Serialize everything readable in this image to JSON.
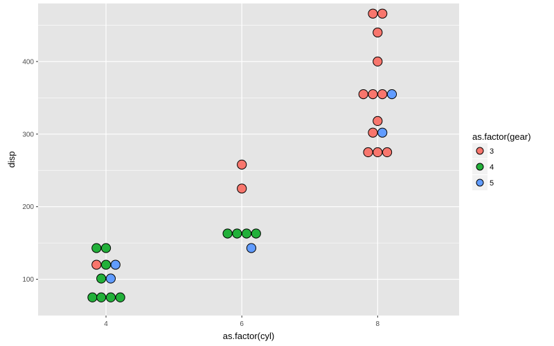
{
  "chart_data": {
    "type": "scatter",
    "subtype": "dotplot",
    "xlabel": "as.factor(cyl)",
    "ylabel": "disp",
    "xlim": [
      3,
      9.2
    ],
    "ylim": [
      50,
      480
    ],
    "x_ticks": [
      4,
      6,
      8
    ],
    "x_tick_labels": [
      "4",
      "6",
      "8"
    ],
    "y_ticks": [
      100,
      200,
      300,
      400
    ],
    "y_tick_labels": [
      "100",
      "200",
      "300",
      "400"
    ],
    "grid": true,
    "panel_background": "#e5e5e5",
    "grid_color": "#ffffff",
    "point_outline": "#000000",
    "legend": {
      "title": "as.factor(gear)",
      "placement": "right",
      "entries": [
        {
          "label": "3",
          "color": "#f8766d"
        },
        {
          "label": "4",
          "color": "#22b03a"
        },
        {
          "label": "5",
          "color": "#619cff"
        }
      ]
    },
    "points": [
      {
        "x": 3.8,
        "y": 75,
        "gear": "4"
      },
      {
        "x": 3.93,
        "y": 75,
        "gear": "4"
      },
      {
        "x": 4.07,
        "y": 75,
        "gear": "4"
      },
      {
        "x": 4.21,
        "y": 75,
        "gear": "4"
      },
      {
        "x": 3.93,
        "y": 101,
        "gear": "4"
      },
      {
        "x": 4.07,
        "y": 101,
        "gear": "5"
      },
      {
        "x": 3.86,
        "y": 120,
        "gear": "3"
      },
      {
        "x": 4.0,
        "y": 120,
        "gear": "4"
      },
      {
        "x": 4.14,
        "y": 120,
        "gear": "5"
      },
      {
        "x": 3.86,
        "y": 143,
        "gear": "4"
      },
      {
        "x": 4.0,
        "y": 143,
        "gear": "4"
      },
      {
        "x": 5.79,
        "y": 163,
        "gear": "4"
      },
      {
        "x": 5.93,
        "y": 163,
        "gear": "4"
      },
      {
        "x": 6.07,
        "y": 163,
        "gear": "4"
      },
      {
        "x": 6.21,
        "y": 163,
        "gear": "4"
      },
      {
        "x": 6.14,
        "y": 143,
        "gear": "5"
      },
      {
        "x": 6.0,
        "y": 225,
        "gear": "3"
      },
      {
        "x": 6.0,
        "y": 258,
        "gear": "3"
      },
      {
        "x": 7.86,
        "y": 275,
        "gear": "3"
      },
      {
        "x": 8.0,
        "y": 275,
        "gear": "3"
      },
      {
        "x": 8.14,
        "y": 275,
        "gear": "3"
      },
      {
        "x": 7.93,
        "y": 302,
        "gear": "3"
      },
      {
        "x": 8.07,
        "y": 302,
        "gear": "5"
      },
      {
        "x": 8.0,
        "y": 318,
        "gear": "3"
      },
      {
        "x": 7.79,
        "y": 355,
        "gear": "3"
      },
      {
        "x": 7.93,
        "y": 355,
        "gear": "3"
      },
      {
        "x": 8.07,
        "y": 355,
        "gear": "3"
      },
      {
        "x": 8.21,
        "y": 355,
        "gear": "5"
      },
      {
        "x": 8.0,
        "y": 400,
        "gear": "3"
      },
      {
        "x": 8.0,
        "y": 440,
        "gear": "3"
      },
      {
        "x": 7.93,
        "y": 466,
        "gear": "3"
      },
      {
        "x": 8.07,
        "y": 466,
        "gear": "3"
      }
    ]
  }
}
